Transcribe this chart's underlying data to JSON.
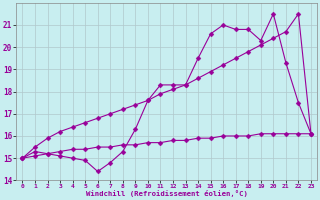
{
  "xlabel": "Windchill (Refroidissement éolien,°C)",
  "bg_color": "#c8eef0",
  "grid_color": "#b0c8cc",
  "line_color": "#990099",
  "xlim": [
    -0.5,
    23.5
  ],
  "ylim": [
    14,
    22
  ],
  "yticks": [
    14,
    15,
    16,
    17,
    18,
    19,
    20,
    21
  ],
  "xticks": [
    0,
    1,
    2,
    3,
    4,
    5,
    6,
    7,
    8,
    9,
    10,
    11,
    12,
    13,
    14,
    15,
    16,
    17,
    18,
    19,
    20,
    21,
    22,
    23
  ],
  "series1_x": [
    0,
    1,
    2,
    3,
    4,
    5,
    6,
    7,
    8,
    9,
    10,
    11,
    12,
    13,
    14,
    15,
    16,
    17,
    18,
    19,
    20,
    21,
    22,
    23
  ],
  "series1_y": [
    15.0,
    15.3,
    15.2,
    15.1,
    15.0,
    14.9,
    14.4,
    14.8,
    15.3,
    16.3,
    17.6,
    18.3,
    18.3,
    18.3,
    19.5,
    20.6,
    21.0,
    20.8,
    20.8,
    20.3,
    21.5,
    19.3,
    17.5,
    16.1
  ],
  "series2_x": [
    0,
    1,
    2,
    3,
    4,
    5,
    6,
    7,
    8,
    9,
    10,
    11,
    12,
    13,
    14,
    15,
    16,
    17,
    18,
    19,
    20,
    21,
    22,
    23
  ],
  "series2_y": [
    15.0,
    15.5,
    15.9,
    16.2,
    16.4,
    16.6,
    16.8,
    17.0,
    17.2,
    17.4,
    17.6,
    17.9,
    18.1,
    18.3,
    18.6,
    18.9,
    19.2,
    19.5,
    19.8,
    20.1,
    20.4,
    20.7,
    21.5,
    16.1
  ],
  "series3_x": [
    0,
    1,
    2,
    3,
    4,
    5,
    6,
    7,
    8,
    9,
    10,
    11,
    12,
    13,
    14,
    15,
    16,
    17,
    18,
    19,
    20,
    21,
    22,
    23
  ],
  "series3_y": [
    15.0,
    15.1,
    15.2,
    15.3,
    15.4,
    15.4,
    15.5,
    15.5,
    15.6,
    15.6,
    15.7,
    15.7,
    15.8,
    15.8,
    15.9,
    15.9,
    16.0,
    16.0,
    16.0,
    16.1,
    16.1,
    16.1,
    16.1,
    16.1
  ],
  "marker_size": 2.5,
  "line_width": 0.8
}
